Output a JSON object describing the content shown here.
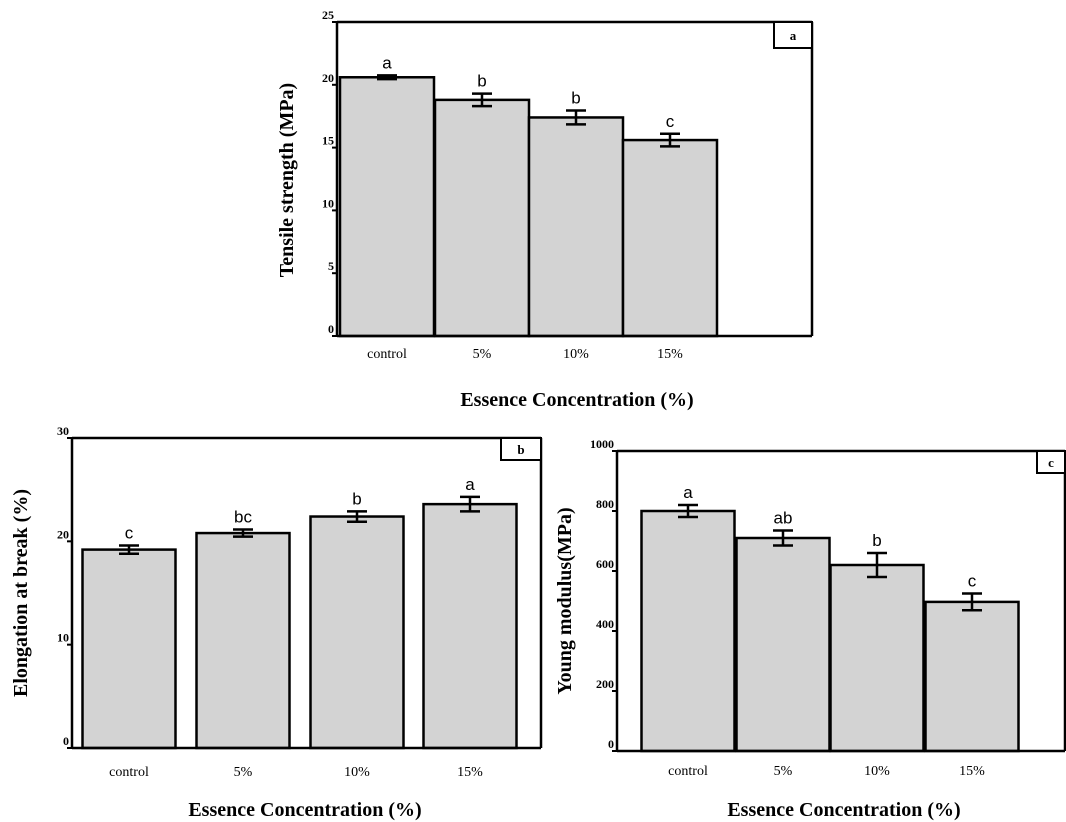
{
  "chart_data": [
    {
      "type": "bar",
      "panel_label": "a",
      "categories": [
        "control",
        "5%",
        "10%",
        "15%"
      ],
      "values": [
        20.6,
        18.8,
        17.4,
        15.6
      ],
      "errors": [
        0.15,
        0.5,
        0.55,
        0.5
      ],
      "significance": [
        "a",
        "b",
        "b",
        "c"
      ],
      "xlabel": "Essence Concentration (%)",
      "ylabel": "Tensile strength (MPa)",
      "ylim": [
        0,
        25
      ],
      "yticks": [
        "0",
        "5",
        "10",
        "15",
        "20",
        "25"
      ],
      "bar_color": "#d3d3d3",
      "grid": false
    },
    {
      "type": "bar",
      "panel_label": "b",
      "categories": [
        "control",
        "5%",
        "10%",
        "15%"
      ],
      "values": [
        19.2,
        20.8,
        22.4,
        23.6
      ],
      "errors": [
        0.4,
        0.35,
        0.5,
        0.7
      ],
      "significance": [
        "c",
        "bc",
        "b",
        "a"
      ],
      "xlabel": "Essence Concentration (%)",
      "ylabel": "Elongation at break (%)",
      "ylim": [
        0,
        30
      ],
      "yticks": [
        "0",
        "10",
        "20",
        "30"
      ],
      "bar_color": "#d3d3d3",
      "grid": false
    },
    {
      "type": "bar",
      "panel_label": "c",
      "categories": [
        "control",
        "5%",
        "10%",
        "15%"
      ],
      "values": [
        800,
        710,
        620,
        497
      ],
      "errors": [
        20,
        25,
        40,
        28
      ],
      "significance": [
        "a",
        "ab",
        "b",
        "c"
      ],
      "xlabel": "Essence Concentration (%)",
      "ylabel": "Young  modulus(MPa)",
      "ylim": [
        0,
        1000
      ],
      "yticks": [
        "0",
        "200",
        "400",
        "600",
        "800",
        "1000"
      ],
      "bar_color": "#d3d3d3",
      "grid": false
    }
  ]
}
